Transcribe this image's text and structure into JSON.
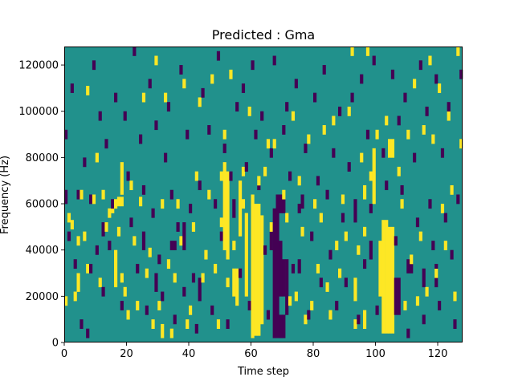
{
  "chart_data": {
    "type": "heatmap",
    "title": "Predicted : Gma",
    "xlabel": "Time step",
    "ylabel": "Frequency (Hz)",
    "xlim": [
      0,
      128
    ],
    "ylim": [
      0,
      128000
    ],
    "xticks": [
      0,
      20,
      40,
      60,
      80,
      100,
      120
    ],
    "yticks": [
      0,
      20000,
      40000,
      60000,
      80000,
      100000,
      120000
    ],
    "ytick_labels": [
      "0",
      "20000",
      "40000",
      "60000",
      "80000",
      "100000",
      "120000"
    ],
    "n_time_steps": 128,
    "n_freq_bins": 128,
    "values_legend": {
      "-1": "dark purple",
      "0": "teal background",
      "1": "yellow"
    },
    "colors": {
      "low": "#440154",
      "mid": "#21918c",
      "high": "#fde725"
    },
    "background_value": 0,
    "yellow_blocks": [
      [
        60,
        61,
        2,
        64
      ],
      [
        61,
        63,
        3,
        60
      ],
      [
        63,
        64,
        8,
        55
      ],
      [
        58,
        59,
        20,
        56
      ],
      [
        102,
        104,
        4,
        53
      ],
      [
        104,
        106,
        4,
        50
      ],
      [
        101,
        102,
        20,
        42
      ],
      [
        51,
        52,
        40,
        78
      ],
      [
        52,
        53,
        36,
        74
      ],
      [
        56,
        57,
        46,
        70
      ],
      [
        17,
        19,
        59,
        63
      ],
      [
        18,
        19,
        64,
        78
      ],
      [
        15,
        16,
        56,
        60
      ],
      [
        99,
        100,
        60,
        84
      ],
      [
        96,
        97,
        62,
        68
      ],
      [
        104,
        106,
        80,
        88
      ],
      [
        31,
        32,
        2,
        8
      ],
      [
        93,
        94,
        18,
        28
      ],
      [
        96,
        97,
        6,
        14
      ],
      [
        16,
        17,
        24,
        40
      ],
      [
        4,
        5,
        22,
        30
      ],
      [
        54,
        56,
        20,
        32
      ]
    ],
    "purple_blocks": [
      [
        67,
        69,
        2,
        58
      ],
      [
        69,
        71,
        2,
        12
      ],
      [
        69,
        72,
        20,
        36
      ],
      [
        71,
        72,
        12,
        20
      ],
      [
        68,
        70,
        36,
        44
      ],
      [
        66,
        67,
        40,
        48
      ],
      [
        68,
        71,
        56,
        64
      ],
      [
        38,
        39,
        40,
        52
      ],
      [
        43,
        44,
        18,
        28
      ],
      [
        34,
        36,
        40,
        44
      ],
      [
        76,
        77,
        58,
        64
      ],
      [
        75,
        76,
        30,
        36
      ],
      [
        8,
        9,
        60,
        64
      ],
      [
        93,
        94,
        52,
        62
      ],
      [
        106,
        108,
        12,
        28
      ],
      [
        110,
        112,
        30,
        36
      ],
      [
        115,
        116,
        24,
        32
      ],
      [
        119,
        120,
        24,
        34
      ],
      [
        0,
        1,
        60,
        66
      ],
      [
        12,
        13,
        46,
        52
      ],
      [
        25,
        26,
        40,
        48
      ],
      [
        29,
        30,
        22,
        30
      ],
      [
        54,
        55,
        54,
        62
      ],
      [
        98,
        99,
        36,
        44
      ]
    ],
    "yellow_pixels": [
      [
        0,
        16
      ],
      [
        1,
        52
      ],
      [
        2,
        49
      ],
      [
        3,
        18
      ],
      [
        4,
        42
      ],
      [
        5,
        62
      ],
      [
        6,
        44
      ],
      [
        7,
        30
      ],
      [
        7,
        107
      ],
      [
        9,
        60
      ],
      [
        10,
        78
      ],
      [
        11,
        24
      ],
      [
        12,
        62
      ],
      [
        13,
        48
      ],
      [
        14,
        54
      ],
      [
        16,
        58
      ],
      [
        17,
        46
      ],
      [
        18,
        26
      ],
      [
        19,
        20
      ],
      [
        20,
        10
      ],
      [
        21,
        66
      ],
      [
        22,
        42
      ],
      [
        23,
        14
      ],
      [
        24,
        59
      ],
      [
        25,
        104
      ],
      [
        26,
        28
      ],
      [
        27,
        37
      ],
      [
        28,
        6
      ],
      [
        29,
        120
      ],
      [
        30,
        14
      ],
      [
        31,
        58
      ],
      [
        32,
        104
      ],
      [
        33,
        32
      ],
      [
        34,
        2
      ],
      [
        35,
        26
      ],
      [
        36,
        58
      ],
      [
        37,
        42
      ],
      [
        38,
        110
      ],
      [
        39,
        6
      ],
      [
        40,
        12
      ],
      [
        41,
        48
      ],
      [
        42,
        70
      ],
      [
        43,
        102
      ],
      [
        44,
        26
      ],
      [
        45,
        36
      ],
      [
        46,
        62
      ],
      [
        47,
        112
      ],
      [
        48,
        30
      ],
      [
        49,
        6
      ],
      [
        50,
        50
      ],
      [
        50,
        70
      ],
      [
        51,
        88
      ],
      [
        52,
        24
      ],
      [
        53,
        114
      ],
      [
        54,
        40
      ],
      [
        55,
        16
      ],
      [
        57,
        58
      ],
      [
        57,
        72
      ],
      [
        59,
        98
      ],
      [
        62,
        68
      ],
      [
        64,
        72
      ],
      [
        65,
        84
      ],
      [
        66,
        48
      ],
      [
        67,
        84
      ],
      [
        70,
        62
      ],
      [
        71,
        52
      ],
      [
        72,
        16
      ],
      [
        73,
        96
      ],
      [
        74,
        18
      ],
      [
        75,
        68
      ],
      [
        76,
        46
      ],
      [
        77,
        8
      ],
      [
        78,
        86
      ],
      [
        79,
        14
      ],
      [
        80,
        58
      ],
      [
        81,
        30
      ],
      [
        82,
        52
      ],
      [
        83,
        90
      ],
      [
        84,
        22
      ],
      [
        85,
        10
      ],
      [
        86,
        94
      ],
      [
        87,
        40
      ],
      [
        88,
        28
      ],
      [
        89,
        60
      ],
      [
        90,
        44
      ],
      [
        91,
        98
      ],
      [
        92,
        124
      ],
      [
        93,
        6
      ],
      [
        94,
        38
      ],
      [
        95,
        78
      ],
      [
        96,
        46
      ],
      [
        97,
        124
      ],
      [
        98,
        70
      ],
      [
        100,
        88
      ],
      [
        101,
        40
      ],
      [
        103,
        94
      ],
      [
        107,
        72
      ],
      [
        108,
        58
      ],
      [
        109,
        14
      ],
      [
        110,
        88
      ],
      [
        111,
        34
      ],
      [
        112,
        110
      ],
      [
        113,
        16
      ],
      [
        114,
        44
      ],
      [
        115,
        90
      ],
      [
        116,
        20
      ],
      [
        117,
        120
      ],
      [
        118,
        86
      ],
      [
        119,
        28
      ],
      [
        120,
        108
      ],
      [
        121,
        56
      ],
      [
        122,
        40
      ],
      [
        123,
        96
      ],
      [
        124,
        64
      ],
      [
        125,
        18
      ],
      [
        126,
        124
      ],
      [
        127,
        84
      ]
    ],
    "purple_pixels": [
      [
        0,
        88
      ],
      [
        1,
        44
      ],
      [
        2,
        108
      ],
      [
        3,
        32
      ],
      [
        4,
        62
      ],
      [
        5,
        6
      ],
      [
        6,
        76
      ],
      [
        7,
        2
      ],
      [
        8,
        30
      ],
      [
        9,
        118
      ],
      [
        10,
        38
      ],
      [
        11,
        96
      ],
      [
        12,
        20
      ],
      [
        13,
        84
      ],
      [
        14,
        40
      ],
      [
        15,
        58
      ],
      [
        16,
        104
      ],
      [
        17,
        46
      ],
      [
        18,
        14
      ],
      [
        19,
        96
      ],
      [
        20,
        70
      ],
      [
        21,
        50
      ],
      [
        22,
        124
      ],
      [
        23,
        30
      ],
      [
        24,
        86
      ],
      [
        25,
        64
      ],
      [
        26,
        12
      ],
      [
        27,
        110
      ],
      [
        28,
        54
      ],
      [
        29,
        92
      ],
      [
        30,
        34
      ],
      [
        31,
        18
      ],
      [
        32,
        78
      ],
      [
        33,
        100
      ],
      [
        34,
        62
      ],
      [
        35,
        8
      ],
      [
        36,
        48
      ],
      [
        37,
        116
      ],
      [
        38,
        20
      ],
      [
        39,
        88
      ],
      [
        40,
        56
      ],
      [
        41,
        26
      ],
      [
        42,
        4
      ],
      [
        43,
        66
      ],
      [
        44,
        106
      ],
      [
        45,
        36
      ],
      [
        46,
        90
      ],
      [
        47,
        12
      ],
      [
        48,
        58
      ],
      [
        49,
        122
      ],
      [
        50,
        44
      ],
      [
        51,
        82
      ],
      [
        52,
        6
      ],
      [
        53,
        70
      ],
      [
        55,
        100
      ],
      [
        56,
        28
      ],
      [
        57,
        108
      ],
      [
        58,
        74
      ],
      [
        59,
        14
      ],
      [
        60,
        118
      ],
      [
        61,
        88
      ],
      [
        62,
        66
      ],
      [
        63,
        96
      ],
      [
        64,
        38
      ],
      [
        65,
        10
      ],
      [
        66,
        80
      ],
      [
        67,
        120
      ],
      [
        70,
        90
      ],
      [
        71,
        100
      ],
      [
        72,
        70
      ],
      [
        73,
        30
      ],
      [
        74,
        110
      ],
      [
        75,
        56
      ],
      [
        77,
        82
      ],
      [
        78,
        10
      ],
      [
        79,
        44
      ],
      [
        80,
        104
      ],
      [
        81,
        68
      ],
      [
        82,
        24
      ],
      [
        83,
        116
      ],
      [
        84,
        62
      ],
      [
        85,
        36
      ],
      [
        86,
        80
      ],
      [
        87,
        14
      ],
      [
        88,
        98
      ],
      [
        89,
        52
      ],
      [
        90,
        24
      ],
      [
        91,
        74
      ],
      [
        92,
        104
      ],
      [
        94,
        8
      ],
      [
        95,
        112
      ],
      [
        96,
        32
      ],
      [
        97,
        88
      ],
      [
        98,
        56
      ],
      [
        99,
        120
      ],
      [
        100,
        12
      ],
      [
        102,
        80
      ],
      [
        103,
        66
      ],
      [
        105,
        114
      ],
      [
        106,
        42
      ],
      [
        107,
        94
      ],
      [
        108,
        64
      ],
      [
        109,
        104
      ],
      [
        110,
        2
      ],
      [
        112,
        78
      ],
      [
        113,
        50
      ],
      [
        114,
        118
      ],
      [
        115,
        8
      ],
      [
        116,
        98
      ],
      [
        117,
        58
      ],
      [
        118,
        40
      ],
      [
        119,
        112
      ],
      [
        120,
        14
      ],
      [
        121,
        80
      ],
      [
        122,
        52
      ],
      [
        123,
        100
      ],
      [
        124,
        36
      ],
      [
        125,
        6
      ],
      [
        126,
        60
      ],
      [
        127,
        114
      ]
    ]
  }
}
